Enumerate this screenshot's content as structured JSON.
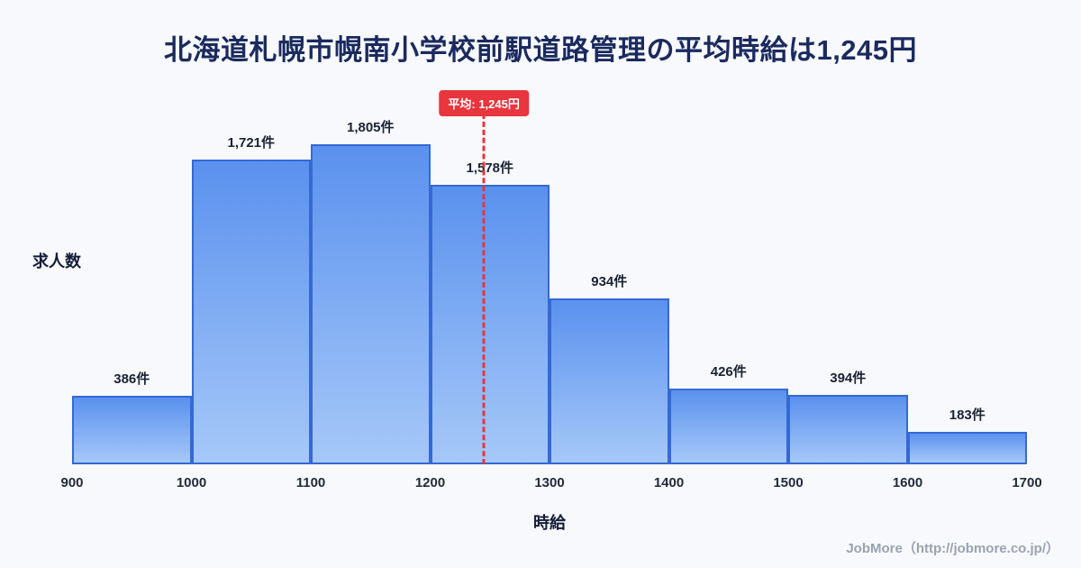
{
  "title": "北海道札幌市幌南小学校前駅道路管理の平均時給は1,245円",
  "chart_data": {
    "type": "bar",
    "title": "北海道札幌市幌南小学校前駅道路管理の平均時給は1,245円",
    "xlabel": "時給",
    "ylabel": "求人数",
    "x_ticks": [
      "900",
      "1000",
      "1100",
      "1200",
      "1300",
      "1400",
      "1500",
      "1600",
      "1700"
    ],
    "x_range": [
      900,
      1700
    ],
    "bin_width": 100,
    "values": [
      386,
      1721,
      1805,
      1578,
      934,
      426,
      394,
      183
    ],
    "bar_labels": [
      "386件",
      "1,721件",
      "1,805件",
      "1,578件",
      "934件",
      "426件",
      "394件",
      "183件"
    ],
    "average": {
      "value": 1245,
      "label": "平均: 1,245円"
    },
    "grid": false,
    "legend": false
  },
  "colors": {
    "page_bg": "#f7f9fc",
    "title_color": "#1b2a5e",
    "bar_top": "#5a91ee",
    "bar_bottom": "#a6c8f8",
    "bar_border": "#3569d4",
    "avg_red": "#e8353e"
  },
  "footer": {
    "credit": "JobMore（http://jobmore.co.jp/）"
  }
}
